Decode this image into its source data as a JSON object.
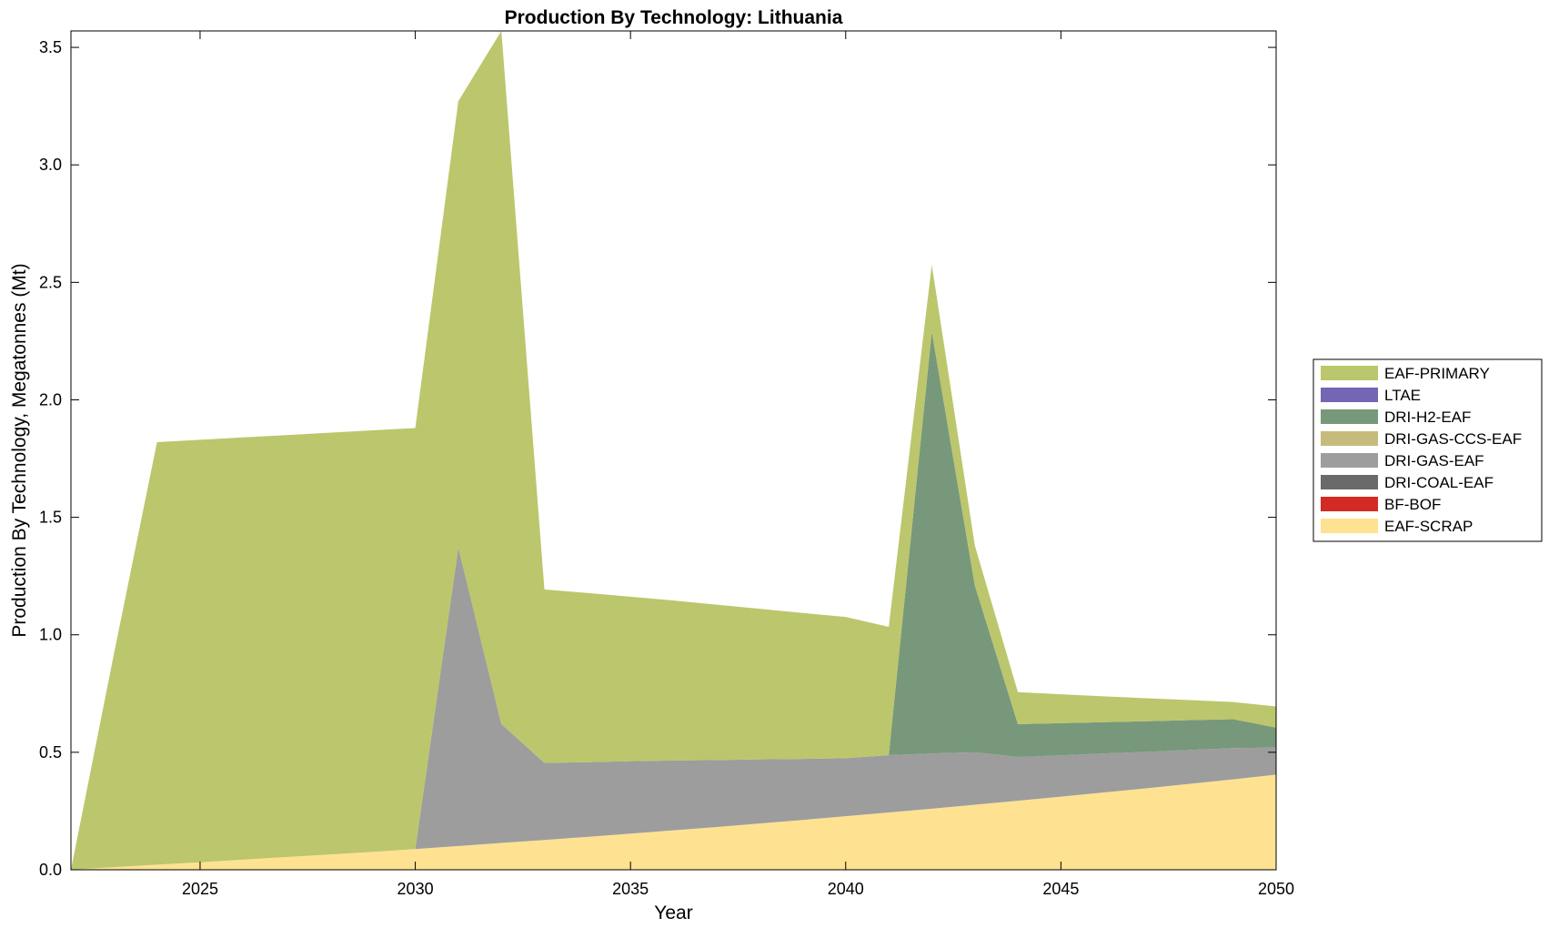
{
  "chart_data": {
    "type": "area",
    "stacked": true,
    "title": "Production By Technology: Lithuania",
    "xlabel": "Year",
    "ylabel": "Production By Technology, Megatonnes (Mt)",
    "xlim": [
      2022,
      2050
    ],
    "ylim": [
      0,
      3.57
    ],
    "xticks": [
      2025,
      2030,
      2035,
      2040,
      2045,
      2050
    ],
    "yticks": [
      0.0,
      0.5,
      1.0,
      1.5,
      2.0,
      2.5,
      3.0,
      3.5
    ],
    "ytick_labels": [
      "0.0",
      "0.5",
      "1.0",
      "1.5",
      "2.0",
      "2.5",
      "3.0",
      "3.5"
    ],
    "grid": false,
    "legend_position": "right",
    "x": [
      2022,
      2023,
      2024,
      2025,
      2026,
      2027,
      2028,
      2029,
      2030,
      2031,
      2032,
      2033,
      2034,
      2035,
      2036,
      2037,
      2038,
      2039,
      2040,
      2041,
      2042,
      2043,
      2044,
      2045,
      2046,
      2047,
      2048,
      2049,
      2050
    ],
    "series": [
      {
        "name": "EAF-SCRAP",
        "color": "#FEE292",
        "values": [
          0.0,
          0.011,
          0.022,
          0.032,
          0.043,
          0.054,
          0.065,
          0.076,
          0.088,
          0.101,
          0.114,
          0.127,
          0.14,
          0.154,
          0.168,
          0.182,
          0.197,
          0.212,
          0.228,
          0.244,
          0.26,
          0.277,
          0.294,
          0.311,
          0.329,
          0.347,
          0.366,
          0.385,
          0.405
        ]
      },
      {
        "name": "BF-BOF",
        "color": "#D42A24",
        "values": [
          0,
          0,
          0,
          0,
          0,
          0,
          0,
          0,
          0,
          0,
          0,
          0,
          0,
          0,
          0,
          0,
          0,
          0,
          0,
          0,
          0,
          0,
          0,
          0,
          0,
          0,
          0,
          0,
          0
        ]
      },
      {
        "name": "DRI-COAL-EAF",
        "color": "#6A6A6A",
        "values": [
          0,
          0,
          0,
          0,
          0,
          0,
          0,
          0,
          0,
          0,
          0,
          0,
          0,
          0,
          0,
          0,
          0,
          0,
          0,
          0,
          0,
          0,
          0,
          0,
          0,
          0,
          0,
          0,
          0
        ]
      },
      {
        "name": "DRI-GAS-EAF",
        "color": "#9D9D9D",
        "values": [
          0,
          0,
          0,
          0,
          0,
          0,
          0,
          0,
          0,
          1.27,
          0.506,
          0.328,
          0.318,
          0.308,
          0.297,
          0.285,
          0.273,
          0.26,
          0.247,
          0.244,
          0.235,
          0.223,
          0.186,
          0.176,
          0.166,
          0.155,
          0.144,
          0.133,
          0.115
        ]
      },
      {
        "name": "DRI-GAS-CCS-EAF",
        "color": "#C6BB7B",
        "values": [
          0,
          0,
          0,
          0,
          0,
          0,
          0,
          0,
          0,
          0,
          0,
          0,
          0,
          0,
          0,
          0,
          0,
          0,
          0,
          0,
          0,
          0,
          0,
          0,
          0,
          0,
          0,
          0,
          0
        ]
      },
      {
        "name": "DRI-H2-EAF",
        "color": "#77987B",
        "values": [
          0,
          0,
          0,
          0,
          0,
          0,
          0,
          0,
          0,
          0,
          0,
          0,
          0,
          0,
          0,
          0,
          0,
          0,
          0,
          0,
          1.795,
          0.71,
          0.14,
          0.137,
          0.133,
          0.13,
          0.127,
          0.123,
          0.085
        ]
      },
      {
        "name": "LTAE",
        "color": "#7465B5",
        "values": [
          0,
          0,
          0,
          0,
          0,
          0,
          0,
          0,
          0,
          0,
          0,
          0,
          0,
          0,
          0,
          0,
          0,
          0,
          0,
          0,
          0,
          0,
          0,
          0,
          0,
          0,
          0,
          0,
          0
        ]
      },
      {
        "name": "EAF-PRIMARY",
        "color": "#BCC66C",
        "values": [
          0,
          0.909,
          1.798,
          1.798,
          1.797,
          1.796,
          1.795,
          1.794,
          1.792,
          1.9,
          2.95,
          0.738,
          0.72,
          0.7,
          0.681,
          0.661,
          0.641,
          0.621,
          0.601,
          0.546,
          0.285,
          0.17,
          0.136,
          0.123,
          0.11,
          0.098,
          0.085,
          0.073,
          0.09
        ]
      }
    ],
    "legend_order": [
      "EAF-PRIMARY",
      "LTAE",
      "DRI-H2-EAF",
      "DRI-GAS-CCS-EAF",
      "DRI-GAS-EAF",
      "DRI-COAL-EAF",
      "BF-BOF",
      "EAF-SCRAP"
    ]
  }
}
